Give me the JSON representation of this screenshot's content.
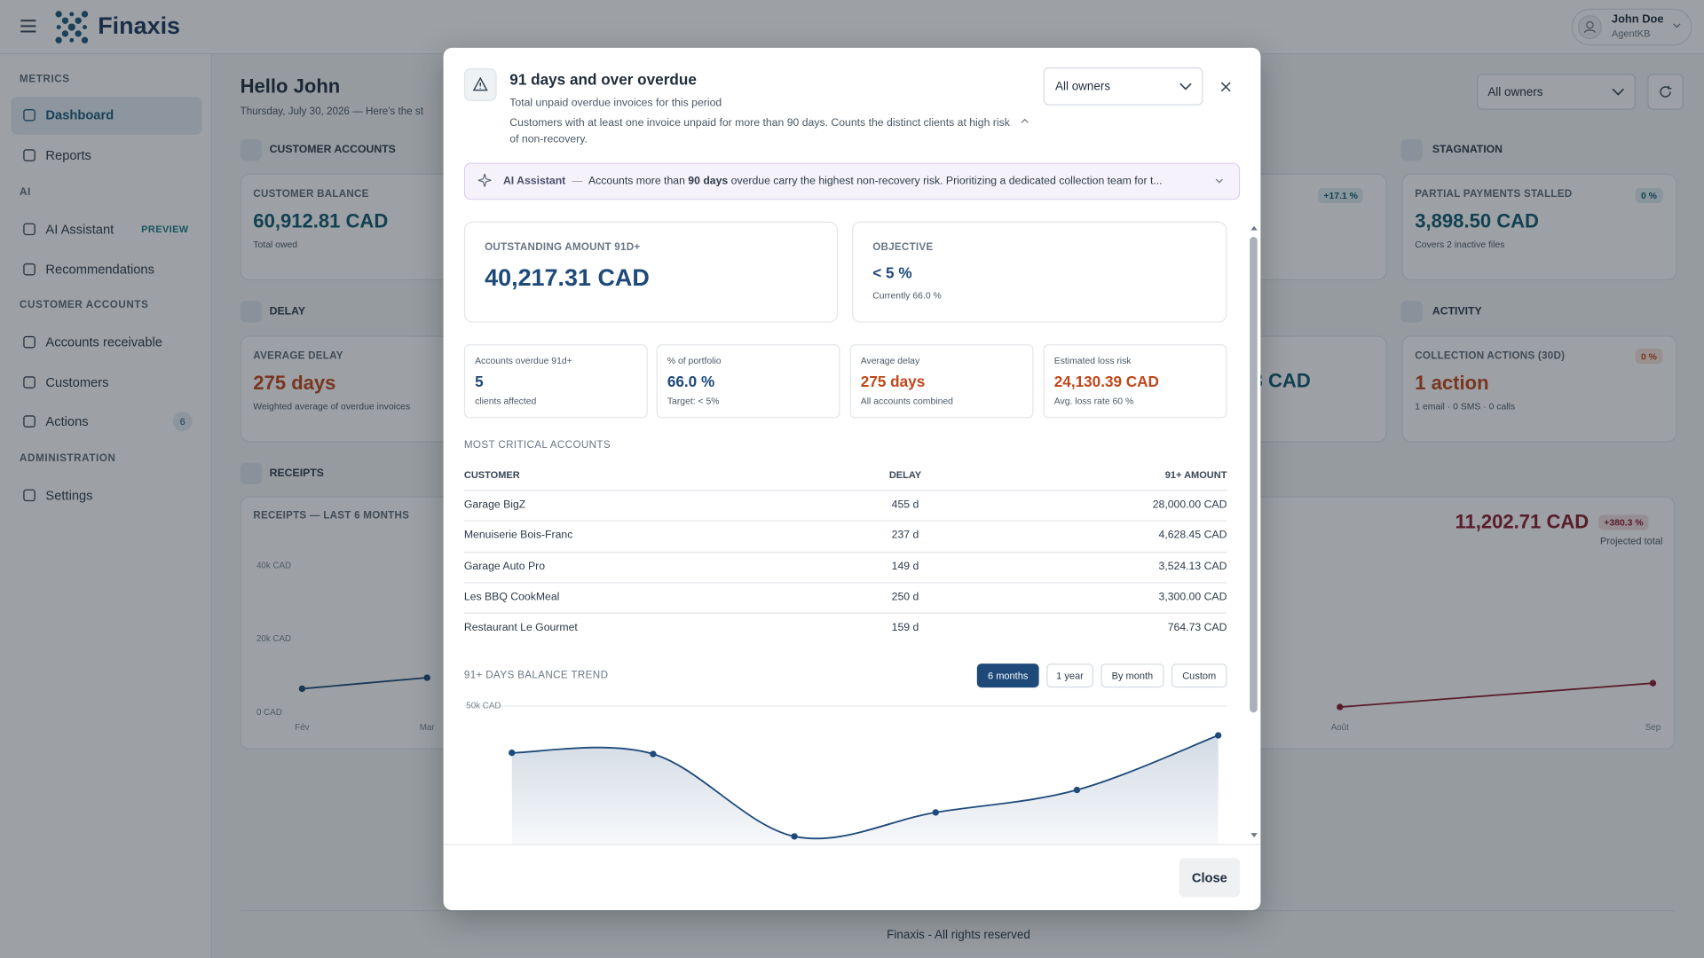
{
  "header": {
    "brand": "Finaxis",
    "user_name": "John Doe",
    "user_role": "AgentKB"
  },
  "sidebar": {
    "sections": [
      {
        "title": "METRICS",
        "items": [
          {
            "label": "Dashboard"
          },
          {
            "label": "Reports"
          }
        ]
      },
      {
        "title": "AI",
        "items": [
          {
            "label": "AI Assistant",
            "badge": "PREVIEW"
          },
          {
            "label": "Recommendations"
          }
        ]
      },
      {
        "title": "CUSTOMER ACCOUNTS",
        "items": [
          {
            "label": "Accounts receivable"
          },
          {
            "label": "Customers"
          },
          {
            "label": "Actions",
            "badge": 6
          }
        ]
      },
      {
        "title": "ADMINISTRATION",
        "items": [
          {
            "label": "Settings"
          }
        ]
      }
    ]
  },
  "dashboard": {
    "greeting": "Hello John",
    "date_line": "Thursday, July 30, 2026 — Here's the st",
    "owner_filter": "All owners",
    "sections": {
      "customer_accounts": "CUSTOMER ACCOUNTS",
      "stagnation": "STAGNATION",
      "delay": "DELAY",
      "activity": "ACTIVITY",
      "receipts": "RECEIPTS"
    },
    "cards": {
      "customer_balance": {
        "label": "CUSTOMER BALANCE",
        "value": "60,912.81 CAD",
        "sub": "Total owed"
      },
      "hidden_card_badge": "+17.1 %",
      "partial_payments": {
        "label": "PARTIAL PAYMENTS STALLED",
        "badge": "0 %",
        "value": "3,898.50 CAD",
        "sub": "Covers 2 inactive files"
      },
      "average_delay": {
        "label": "AVERAGE DELAY",
        "value": "275 days",
        "sub": "Weighted average of overdue invoices"
      },
      "hidden_card_value": "3 CAD",
      "collection_actions": {
        "label": "COLLECTION ACTIONS (30D)",
        "badge": "0 %",
        "value": "1 action",
        "sub": "1 email · 0 SMS · 0 calls"
      }
    },
    "receipts": {
      "title": "RECEIPTS — LAST 6 MONTHS",
      "projected_value": "11,202.71 CAD",
      "projected_badge": "+380.3 %",
      "projected_label": "Projected total",
      "chart": {
        "type": "line",
        "categories": [
          "Fév",
          "Mar",
          null,
          null,
          null,
          null,
          "Août",
          "Sep"
        ],
        "series": [
          {
            "color": "#1e4a7a",
            "values": [
              6500,
              9500,
              null,
              null,
              null,
              null,
              null,
              null
            ]
          },
          {
            "color": "#8b1a2e",
            "values": [
              null,
              null,
              null,
              null,
              null,
              null,
              1500,
              8000
            ]
          }
        ],
        "ylim": [
          0,
          40000
        ],
        "yticks": [
          {
            "value": 0,
            "label": "0 CAD"
          },
          {
            "value": 20000,
            "label": "20k CAD"
          },
          {
            "value": 40000,
            "label": "40k CAD"
          }
        ],
        "grid": false
      }
    },
    "footer": "Finaxis - All rights reserved"
  },
  "modal": {
    "title": "91 days and over overdue",
    "subtitle": "Total unpaid overdue invoices for this period",
    "description": "Customers with at least one invoice unpaid for more than 90 days. Counts the distinct clients at high risk of non-recovery.",
    "owner_filter": "All owners",
    "ai_banner": {
      "label": "AI Assistant",
      "separator": "—",
      "text_before": "Accounts more than",
      "emphasis": "90 days",
      "text_after": "overdue carry the highest non-recovery risk. Prioritizing a dedicated collection team for t..."
    },
    "outstanding": {
      "label": "OUTSTANDING AMOUNT 91D+",
      "value": "40,217.31 CAD"
    },
    "objective": {
      "label": "OBJECTIVE",
      "value": "< 5 %",
      "sub": "Currently 66.0 %"
    },
    "stats": [
      {
        "label": "Accounts overdue 91d+",
        "value": "5",
        "sub": "clients affected"
      },
      {
        "label": "% of portfolio",
        "value": "66.0 %",
        "sub": "Target: < 5%"
      },
      {
        "label": "Average delay",
        "value": "275 days",
        "sub": "All accounts combined"
      },
      {
        "label": "Estimated loss risk",
        "value": "24,130.39 CAD",
        "sub": "Avg. loss rate 60 %"
      }
    ],
    "table": {
      "title": "MOST CRITICAL ACCOUNTS",
      "headers": [
        "CUSTOMER",
        "DELAY",
        "91+ AMOUNT"
      ],
      "rows": [
        [
          "Garage BigZ",
          "455 d",
          "28,000.00 CAD"
        ],
        [
          "Menuiserie Bois-Franc",
          "237 d",
          "4,628.45 CAD"
        ],
        [
          "Garage Auto Pro",
          "149 d",
          "3,524.13 CAD"
        ],
        [
          "Les BBQ CookMeal",
          "250 d",
          "3,300.00 CAD"
        ],
        [
          "Restaurant Le Gourmet",
          "159 d",
          "764.73 CAD"
        ]
      ]
    },
    "trend": {
      "title": "91+ DAYS BALANCE TREND",
      "ranges": [
        "6 months",
        "1 year",
        "By month",
        "Custom"
      ],
      "chart": {
        "type": "area",
        "color": "#1e4a7a",
        "values": [
          34400,
          34000,
          6500,
          14500,
          22000,
          40200
        ],
        "ylim": [
          0,
          50000
        ],
        "yticks": [
          {
            "value": 50000,
            "label": "50k CAD"
          }
        ],
        "grid": true
      }
    },
    "close": "Close"
  }
}
